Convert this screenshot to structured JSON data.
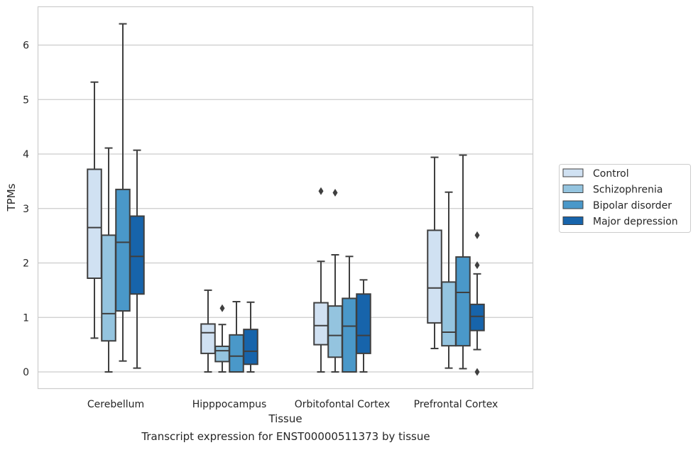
{
  "caption": "Transcript expression for ENST00000511373 by tissue",
  "chart_data": {
    "type": "box",
    "xlabel": "Tissue",
    "ylabel": "TPMs",
    "ylim": [
      -0.3,
      6.7
    ],
    "yticks": [
      0,
      1,
      2,
      3,
      4,
      5,
      6
    ],
    "grid": "horizontal",
    "legend_position": "right",
    "categories": [
      "Cerebellum",
      "Hipppocampus",
      "Orbitofontal Cortex",
      "Prefrontal Cortex"
    ],
    "series": [
      {
        "name": "Control",
        "color": "#d0e1f2",
        "boxes": [
          {
            "whislo": 0.62,
            "q1": 1.72,
            "med": 2.65,
            "q3": 3.72,
            "whishi": 5.32,
            "fliers": []
          },
          {
            "whislo": 0.0,
            "q1": 0.34,
            "med": 0.72,
            "q3": 0.88,
            "whishi": 1.5,
            "fliers": []
          },
          {
            "whislo": 0.0,
            "q1": 0.5,
            "med": 0.85,
            "q3": 1.27,
            "whishi": 2.03,
            "fliers": [
              3.32
            ]
          },
          {
            "whislo": 0.43,
            "q1": 0.9,
            "med": 1.54,
            "q3": 2.6,
            "whishi": 3.94,
            "fliers": []
          }
        ]
      },
      {
        "name": "Schizophrenia",
        "color": "#94c4df",
        "boxes": [
          {
            "whislo": 0.0,
            "q1": 0.57,
            "med": 1.07,
            "q3": 2.51,
            "whishi": 4.11,
            "fliers": []
          },
          {
            "whislo": 0.0,
            "q1": 0.19,
            "med": 0.39,
            "q3": 0.47,
            "whishi": 0.87,
            "fliers": [
              1.17
            ]
          },
          {
            "whislo": 0.0,
            "q1": 0.27,
            "med": 0.67,
            "q3": 1.21,
            "whishi": 2.15,
            "fliers": [
              3.29
            ]
          },
          {
            "whislo": 0.07,
            "q1": 0.48,
            "med": 0.73,
            "q3": 1.65,
            "whishi": 3.3,
            "fliers": []
          }
        ]
      },
      {
        "name": "Bipolar disorder",
        "color": "#4a98c9",
        "boxes": [
          {
            "whislo": 0.2,
            "q1": 1.12,
            "med": 2.38,
            "q3": 3.35,
            "whishi": 6.39,
            "fliers": []
          },
          {
            "whislo": 0.0,
            "q1": 0.0,
            "med": 0.29,
            "q3": 0.68,
            "whishi": 1.29,
            "fliers": []
          },
          {
            "whislo": 0.0,
            "q1": 0.0,
            "med": 0.84,
            "q3": 1.35,
            "whishi": 2.12,
            "fliers": []
          },
          {
            "whislo": 0.06,
            "q1": 0.48,
            "med": 1.46,
            "q3": 2.11,
            "whishi": 3.98,
            "fliers": []
          }
        ]
      },
      {
        "name": "Major depression",
        "color": "#1764ab",
        "boxes": [
          {
            "whislo": 0.07,
            "q1": 1.43,
            "med": 2.12,
            "q3": 2.86,
            "whishi": 4.07,
            "fliers": []
          },
          {
            "whislo": 0.0,
            "q1": 0.14,
            "med": 0.38,
            "q3": 0.78,
            "whishi": 1.28,
            "fliers": []
          },
          {
            "whislo": 0.0,
            "q1": 0.34,
            "med": 0.67,
            "q3": 1.43,
            "whishi": 1.69,
            "fliers": []
          },
          {
            "whislo": 0.41,
            "q1": 0.76,
            "med": 1.02,
            "q3": 1.24,
            "whishi": 1.8,
            "fliers": [
              2.51,
              1.96,
              0.0
            ]
          }
        ]
      }
    ]
  }
}
